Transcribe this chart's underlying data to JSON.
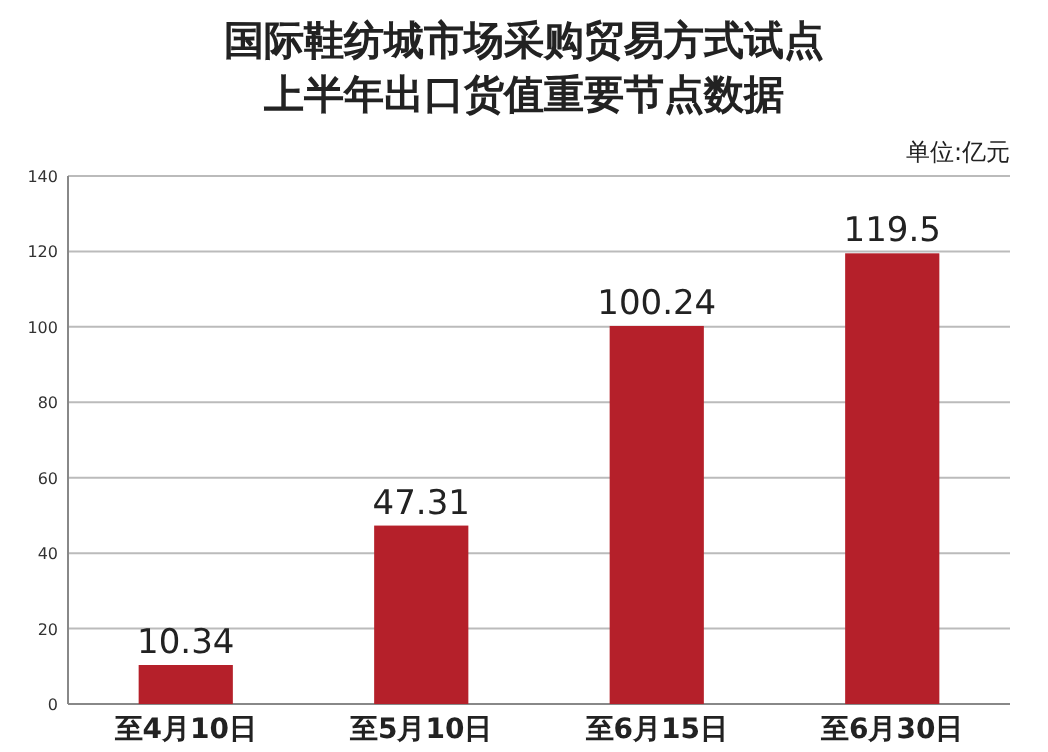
{
  "chart_data": {
    "type": "bar",
    "title": "国际鞋纺城市场采购贸易方式试点",
    "subtitle": "上半年出口货值重要节点数据",
    "annotations": [
      "单位:亿元"
    ],
    "categories": [
      "至4月10日",
      "至5月10日",
      "至6月15日",
      "至6月30日"
    ],
    "values": [
      10.34,
      47.31,
      100.24,
      119.5
    ],
    "color": "#b5202a",
    "ylim": [
      0,
      140
    ],
    "yticks": [
      0,
      20,
      40,
      60,
      80,
      100,
      120,
      140
    ],
    "grid": "y",
    "data_labels": true
  }
}
